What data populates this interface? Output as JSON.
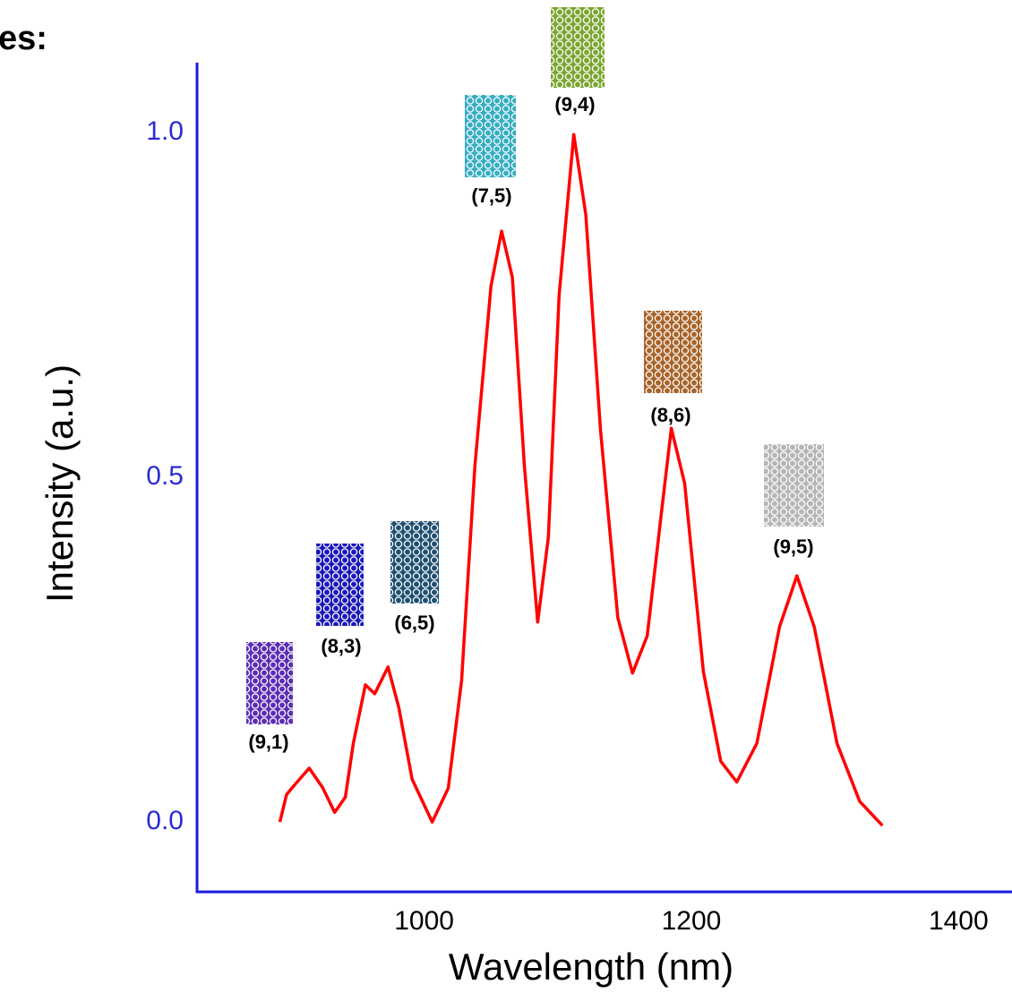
{
  "chart_data": {
    "type": "line",
    "title": "es:",
    "x_label": "Wavelength (nm)",
    "y_label": "Intensity (a.u.)",
    "xlim": [
      830,
      1440
    ],
    "ylim": [
      -0.1,
      1.1
    ],
    "xticks": [
      1000,
      1200,
      1400
    ],
    "yticks": [
      {
        "value": 0,
        "label": "0.0"
      },
      {
        "value": 0.5,
        "label": "0.5"
      },
      {
        "value": 1,
        "label": "1.0"
      }
    ],
    "x": [
      892,
      897,
      904,
      914,
      924,
      933,
      941,
      947,
      956,
      963,
      973,
      981,
      991,
      1006,
      1018,
      1028,
      1038,
      1050,
      1058,
      1066,
      1075,
      1085,
      1093,
      1101,
      1112,
      1121,
      1132,
      1145,
      1156,
      1167,
      1177,
      1185,
      1195,
      1209,
      1222,
      1234,
      1249,
      1266,
      1279,
      1292,
      1309,
      1326,
      1343
    ],
    "series": [
      {
        "color": "#ff0000",
        "values": [
          0.0,
          0.04,
          0.056,
          0.078,
          0.05,
          0.014,
          0.036,
          0.114,
          0.199,
          0.186,
          0.225,
          0.166,
          0.062,
          0.0,
          0.049,
          0.205,
          0.517,
          0.777,
          0.857,
          0.79,
          0.517,
          0.29,
          0.413,
          0.764,
          0.997,
          0.881,
          0.569,
          0.296,
          0.216,
          0.27,
          0.439,
          0.571,
          0.491,
          0.218,
          0.088,
          0.058,
          0.114,
          0.283,
          0.357,
          0.283,
          0.114,
          0.03,
          -0.005
        ]
      }
    ],
    "annotations": [
      "(9,1)",
      "(8,3)",
      "(6,5)",
      "(7,5)",
      "(9,4)",
      "(8,6)",
      "(9,5)"
    ]
  }
}
